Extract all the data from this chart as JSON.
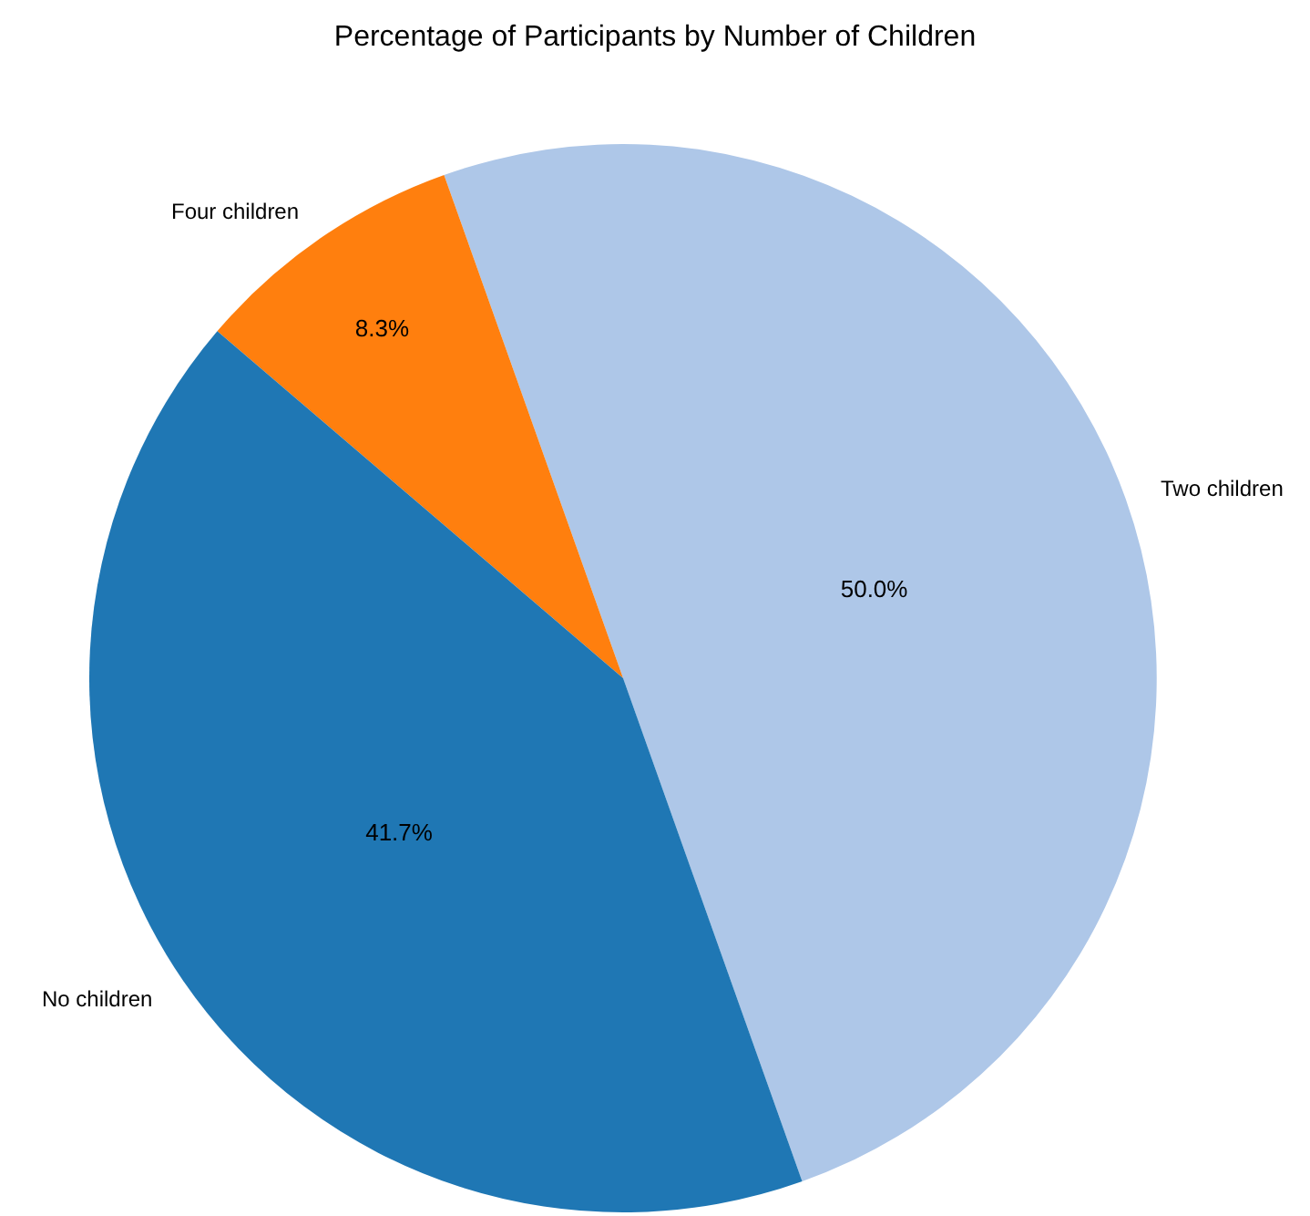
{
  "chart_data": {
    "type": "pie",
    "title": "Percentage of Participants by Number of Children",
    "categories": [
      "Two children",
      "Four children",
      "No children"
    ],
    "values": [
      50.0,
      8.3,
      41.7
    ],
    "colors": [
      "#aec7e8",
      "#ff7f0e",
      "#1f77b4"
    ],
    "value_labels": [
      "50.0%",
      "8.3%",
      "41.7%"
    ],
    "legend": false
  }
}
